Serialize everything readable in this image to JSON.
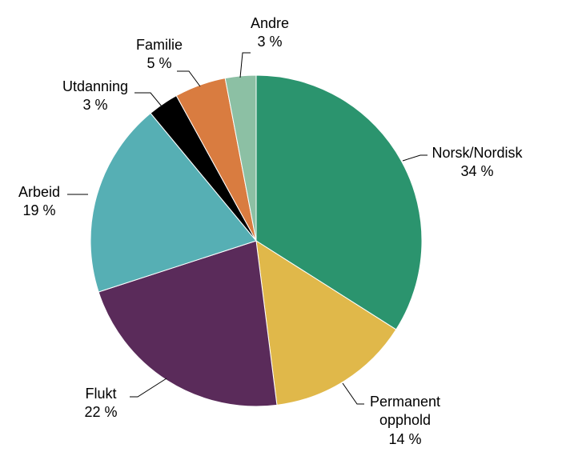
{
  "chart_data": {
    "type": "pie",
    "title": "",
    "start_angle_deg": 0,
    "direction": "clockwise",
    "unit": "%",
    "slices": [
      {
        "label": "Norsk/Nordisk",
        "value": 34,
        "value_label": "34 %",
        "color": "#2b946e"
      },
      {
        "label": "Permanent opphold",
        "value": 14,
        "value_label": "14 %",
        "color": "#e0b84a"
      },
      {
        "label": "Flukt",
        "value": 22,
        "value_label": "22 %",
        "color": "#5a2b5a"
      },
      {
        "label": "Arbeid",
        "value": 19,
        "value_label": "19 %",
        "color": "#56afb4"
      },
      {
        "label": "Utdanning",
        "value": 3,
        "value_label": "3 %",
        "color": "#000000"
      },
      {
        "label": "Familie",
        "value": 5,
        "value_label": "5 %",
        "color": "#d97c40"
      },
      {
        "label": "Andre",
        "value": 3,
        "value_label": "3 %",
        "color": "#8cc0a4"
      }
    ]
  }
}
